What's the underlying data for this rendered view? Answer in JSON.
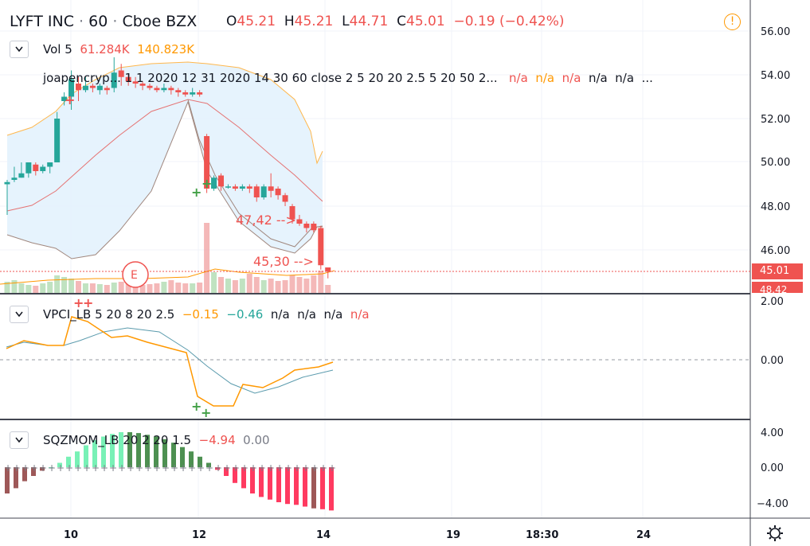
{
  "header": {
    "symbol": "LYFT INC",
    "sep1": "·",
    "interval": "60",
    "sep2": "·",
    "exchange": "Cboe BZX",
    "o_key": "O",
    "o_val": "45.21",
    "h_key": "H",
    "h_val": "45.21",
    "l_key": "L",
    "l_val": "44.71",
    "c_key": "C",
    "c_val": "45.01",
    "change": "−0.19 (−0.42%)",
    "alert_glyph": "!"
  },
  "vol_legend": {
    "name": "Vol 5",
    "v1": "61.284K",
    "v2": "140.823K"
  },
  "indicator_legend": {
    "text": "joapencryp... 1 1 2020 12 31 2020 14 30 60 close 2 5 20 20 2.5 5 20 50 2...",
    "v1": "n/a",
    "v2": "n/a",
    "v3": "n/a",
    "v4": "n/a",
    "v5": "n/a",
    "more": "..."
  },
  "vpci_legend": {
    "name": "VPCI_LB 5 20 8 20 2.5",
    "v1": "−0.15",
    "v2": "−0.46",
    "v3": "n/a",
    "v4": "n/a",
    "v5": "n/a",
    "v6": "n/a"
  },
  "sqz_legend": {
    "name": "SQZMOM_LB 20 2 20 1.5",
    "v1": "−4.94",
    "v2": "0.00"
  },
  "annotations": {
    "a1": "47,42 -->",
    "a2": "45,30 -->",
    "earnings": "E"
  },
  "price_box": {
    "value": "45.01",
    "next": "48.42"
  },
  "price_axis": [
    "56.00",
    "54.00",
    "52.00",
    "50.00",
    "48.00",
    "46.00"
  ],
  "vpci_axis": [
    "2.00",
    "0.00"
  ],
  "sqz_axis": [
    "4.00",
    "0.00",
    "−4.00"
  ],
  "time_axis": [
    "10",
    "12",
    "14",
    "19",
    "18:30",
    "24"
  ],
  "colors": {
    "up": "#26a69a",
    "down": "#ef5350",
    "band_fill": "#e3f2fd",
    "orange": "#ff9800"
  },
  "chart_data": {
    "type": "candlestick",
    "candles": [
      [
        49.0,
        49.1,
        47.6,
        49.2
      ],
      [
        49.2,
        49.3,
        49.1,
        49.8
      ],
      [
        49.3,
        49.5,
        49.3,
        50.0
      ],
      [
        49.5,
        50.0,
        49.3,
        49.9
      ],
      [
        49.9,
        49.6,
        49.4,
        50.0
      ],
      [
        49.6,
        49.8,
        49.5,
        49.9
      ],
      [
        49.8,
        50.0,
        49.5,
        50.0
      ],
      [
        50.0,
        52.0,
        50.0,
        52.3
      ],
      [
        52.8,
        53.0,
        52.6,
        53.2
      ],
      [
        53.0,
        53.8,
        52.4,
        54.2
      ],
      [
        53.6,
        53.3,
        52.8,
        53.9
      ],
      [
        53.3,
        53.5,
        53.2,
        53.9
      ],
      [
        53.5,
        53.4,
        53.2,
        53.6
      ],
      [
        53.3,
        53.5,
        53.1,
        53.6
      ],
      [
        53.4,
        53.3,
        53.1,
        53.5
      ],
      [
        53.4,
        54.1,
        53.2,
        54.8
      ],
      [
        54.2,
        53.9,
        53.5,
        54.5
      ],
      [
        53.9,
        53.7,
        53.5,
        54.0
      ],
      [
        53.7,
        53.6,
        53.4,
        53.9
      ],
      [
        53.6,
        53.5,
        53.3,
        53.7
      ],
      [
        53.5,
        53.4,
        53.3,
        53.6
      ],
      [
        53.4,
        53.3,
        53.2,
        53.5
      ],
      [
        53.3,
        53.4,
        53.2,
        53.6
      ],
      [
        53.4,
        53.3,
        53.1,
        53.5
      ],
      [
        53.3,
        53.2,
        53.0,
        53.4
      ],
      [
        53.2,
        53.1,
        53.0,
        53.3
      ],
      [
        53.1,
        53.2,
        53.0,
        53.4
      ],
      [
        53.2,
        53.1,
        53.0,
        53.3
      ],
      [
        51.2,
        48.8,
        48.6,
        51.3
      ],
      [
        48.8,
        49.3,
        48.7,
        49.4
      ],
      [
        49.4,
        48.9,
        48.7,
        49.5
      ],
      [
        48.9,
        48.9,
        48.8,
        49.0
      ],
      [
        48.9,
        48.8,
        48.7,
        49.0
      ],
      [
        48.8,
        48.9,
        48.7,
        49.0
      ],
      [
        48.9,
        48.8,
        48.6,
        49.0
      ],
      [
        48.9,
        48.4,
        48.2,
        49.0
      ],
      [
        48.4,
        48.9,
        48.3,
        49.0
      ],
      [
        48.9,
        48.7,
        48.4,
        49.5
      ],
      [
        48.8,
        48.5,
        48.3,
        48.9
      ],
      [
        48.5,
        48.2,
        48.0,
        48.6
      ],
      [
        48.0,
        47.4,
        47.2,
        48.1
      ],
      [
        47.4,
        47.2,
        47.1,
        47.6
      ],
      [
        47.2,
        47.0,
        46.8,
        47.3
      ],
      [
        47.2,
        46.9,
        46.8,
        47.3
      ],
      [
        47.0,
        45.3,
        45.1,
        47.1
      ],
      [
        45.2,
        45.0,
        44.7,
        45.2
      ]
    ]
  }
}
